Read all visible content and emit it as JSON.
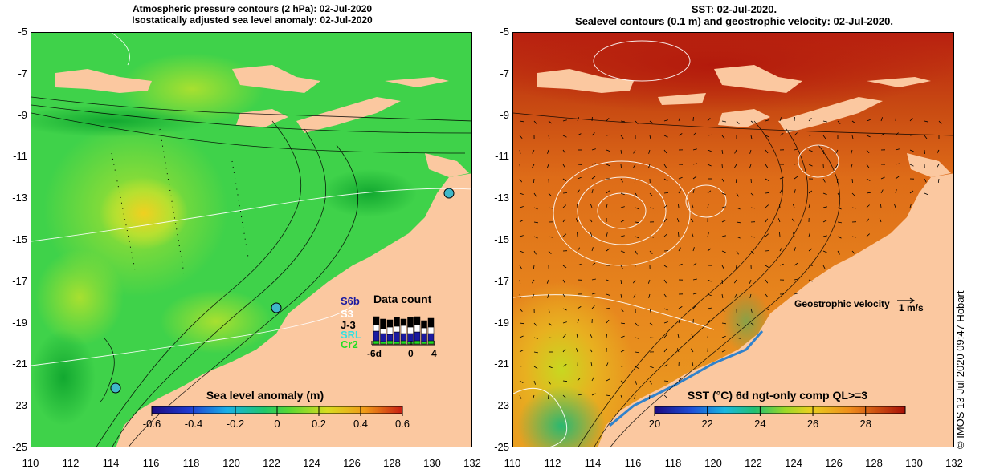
{
  "left_panel": {
    "title_line1": "Atmospheric pressure contours (2 hPa): 02-Jul-2020",
    "title_line2": "Isostatically adjusted sea level anomaly: 02-Jul-2020",
    "colorbar_title": "Sea level anomaly (m)",
    "colorbar_ticks": [
      "-0.6",
      "-0.4",
      "-0.2",
      "0",
      "0.2",
      "0.4",
      "0.6"
    ],
    "data_count": {
      "title": "Data count",
      "satellites": [
        {
          "label": "S6b",
          "color": "#1a1aa0"
        },
        {
          "label": "S3",
          "color": "#ffffff"
        },
        {
          "label": "J-3",
          "color": "#000000"
        },
        {
          "label": "SRL",
          "color": "#33e0e0"
        },
        {
          "label": "Cr2",
          "color": "#22dd22"
        }
      ],
      "axis_ticks": [
        "-6d",
        "0",
        "4"
      ]
    }
  },
  "right_panel": {
    "title_line1": "SST: 02-Jul-2020.",
    "title_line2": "Sealevel contours (0.1 m) and geostrophic velocity: 02-Jul-2020.",
    "colorbar_title": "SST (°C) 6d ngt-only comp QL>=3",
    "colorbar_ticks": [
      "20",
      "22",
      "24",
      "26",
      "28"
    ],
    "velocity_legend": "Geostrophic velocity",
    "velocity_scale": "1 m/s"
  },
  "axes": {
    "lat_ticks": [
      "-5",
      "-7",
      "-9",
      "-11",
      "-13",
      "-15",
      "-17",
      "-19",
      "-21",
      "-23",
      "-25"
    ],
    "lon_ticks": [
      "110",
      "112",
      "114",
      "116",
      "118",
      "120",
      "122",
      "124",
      "126",
      "128",
      "130",
      "132"
    ]
  },
  "credit": "© IMOS 13-Jul-2020 09:47 Hobart",
  "colors": {
    "land": "#fbc8a0",
    "sla_green": "#3fd24a",
    "sst_orange": "#e07a1a",
    "sst_red": "#b31a0c"
  }
}
